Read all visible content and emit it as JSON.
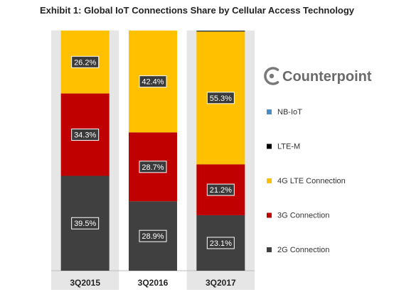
{
  "title": "Exhibit 1: Global IoT Connections Share by Cellular Access Technology",
  "logo": {
    "text": "Counterpoint",
    "icon": "counterpoint-c-icon"
  },
  "chart_data": {
    "type": "bar",
    "stacked": true,
    "title": "Exhibit 1: Global IoT Connections Share by Cellular Access Technology",
    "xlabel": "",
    "ylabel": "",
    "ylim": [
      0,
      100
    ],
    "unit": "%",
    "grid": false,
    "legend_position": "right",
    "categories": [
      "3Q2015",
      "3Q2016",
      "3Q2017"
    ],
    "series": [
      {
        "name": "2G Connection",
        "color": "#404040",
        "values": [
          39.5,
          28.9,
          23.1
        ]
      },
      {
        "name": "3G Connection",
        "color": "#c00000",
        "values": [
          34.3,
          28.7,
          21.2
        ]
      },
      {
        "name": "4G LTE Connection",
        "color": "#ffc000",
        "values": [
          26.2,
          42.4,
          55.3
        ]
      },
      {
        "name": "LTE-M",
        "color": "#000000",
        "values": [
          0,
          0,
          0.3
        ]
      },
      {
        "name": "NB-IoT",
        "color": "#4a8cc4",
        "values": [
          0,
          0,
          0.1
        ]
      }
    ],
    "data_labels": [
      [
        "39.5%",
        "34.3%",
        "26.2%"
      ],
      [
        "28.9%",
        "28.7%",
        "42.4%"
      ],
      [
        "23.1%",
        "21.2%",
        "55.3%"
      ]
    ],
    "legend": [
      "NB-IoT",
      "LTE-M",
      "4G LTE Connection",
      "3G Connection",
      "2G Connection"
    ]
  }
}
